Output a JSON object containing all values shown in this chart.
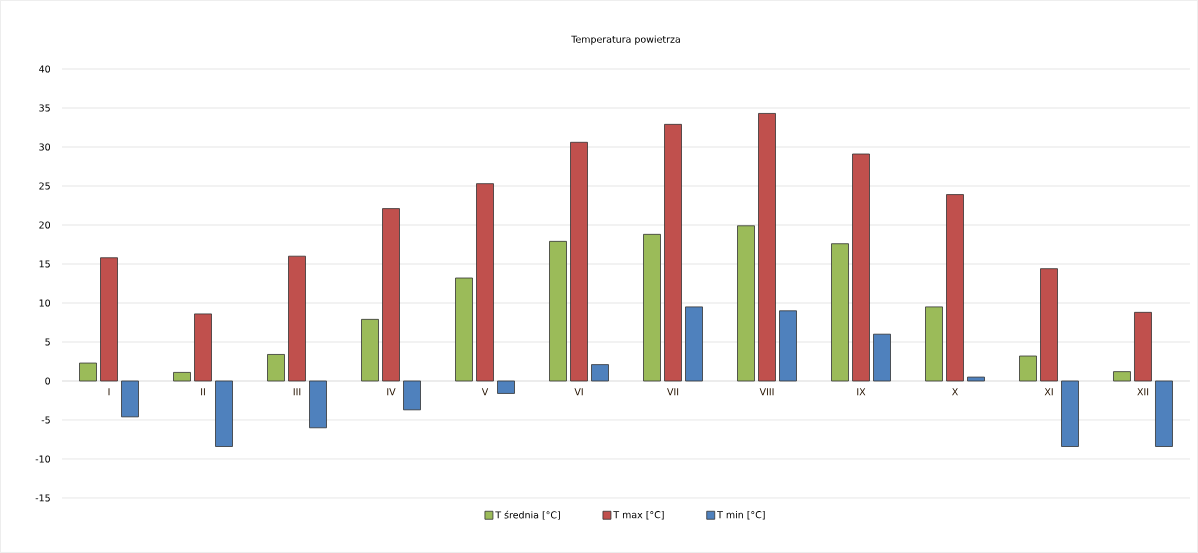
{
  "chart_data": {
    "type": "bar",
    "title": "Temperatura powietrza",
    "categories": [
      "I",
      "II",
      "III",
      "IV",
      "V",
      "VI",
      "VII",
      "VIII",
      "IX",
      "X",
      "XI",
      "XII"
    ],
    "series": [
      {
        "name": "T średnia [°C]",
        "color": "#9bbb59",
        "values": [
          2.3,
          1.1,
          3.4,
          7.9,
          13.2,
          17.9,
          18.8,
          19.9,
          17.6,
          9.5,
          3.2,
          1.2
        ]
      },
      {
        "name": "T max [°C]",
        "color": "#c0504d",
        "values": [
          15.8,
          8.6,
          16.0,
          22.1,
          25.3,
          30.6,
          32.9,
          34.3,
          29.1,
          23.9,
          14.4,
          8.8
        ]
      },
      {
        "name": "T min [°C]",
        "color": "#4f81bd",
        "values": [
          -4.6,
          -8.4,
          -6.0,
          -3.7,
          -1.6,
          2.1,
          9.5,
          9.0,
          6.0,
          0.5,
          -8.4,
          -8.4
        ]
      }
    ],
    "ylim": [
      -15,
      40
    ],
    "yticks": [
      -15,
      -10,
      -5,
      0,
      5,
      10,
      15,
      20,
      25,
      30,
      35,
      40
    ],
    "grid": "y",
    "legend": "bottom"
  }
}
